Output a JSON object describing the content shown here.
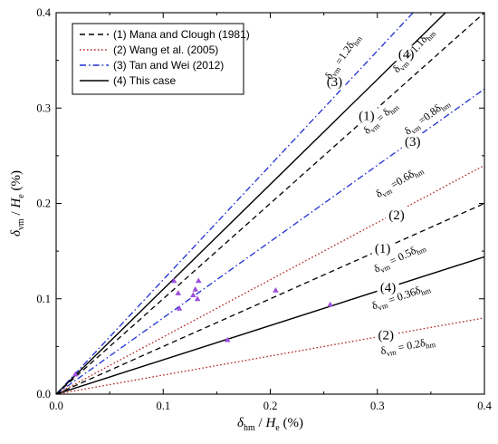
{
  "chart_data": {
    "type": "line",
    "xlim": [
      0,
      0.4
    ],
    "ylim": [
      0,
      0.4
    ],
    "x_ticks": [
      "0.0",
      "0.1",
      "0.2",
      "0.3",
      "0.4"
    ],
    "y_ticks": [
      "0.0",
      "0.1",
      "0.2",
      "0.3",
      "0.4"
    ],
    "xlabel": {
      "main": "δ",
      "sub": "hm",
      "rest": " / H",
      "sub2": "e",
      "unit": " (%)"
    },
    "ylabel": {
      "main": "δ",
      "sub": "vm",
      "rest": " / H",
      "sub2": "e",
      "unit": " (%)"
    },
    "grid": false,
    "legend_position": "top-left",
    "series": [
      {
        "name": "(1) Mana and Clough (1981)",
        "style": "dashed",
        "color": "#000000",
        "slopes": [
          0.5,
          1.0
        ]
      },
      {
        "name": "(2) Wang et al. (2005)",
        "style": "dotted",
        "color": "#b22222",
        "slopes": [
          0.2,
          0.6
        ]
      },
      {
        "name": "(3) Tan and Wei (2012)",
        "style": "dashdot",
        "color": "#1f2fd1",
        "slopes": [
          0.8,
          1.2
        ]
      },
      {
        "name": "(4) This case",
        "style": "solid",
        "color": "#000000",
        "slopes": [
          0.36,
          1.1
        ]
      }
    ],
    "points": {
      "color": "#9d4edd",
      "values": [
        [
          0.11,
          0.119
        ],
        [
          0.114,
          0.106
        ],
        [
          0.115,
          0.09
        ],
        [
          0.128,
          0.104
        ],
        [
          0.13,
          0.11
        ],
        [
          0.132,
          0.1
        ],
        [
          0.133,
          0.119
        ],
        [
          0.16,
          0.057
        ],
        [
          0.205,
          0.109
        ],
        [
          0.256,
          0.094
        ],
        [
          0.018,
          0.021
        ]
      ]
    },
    "line_labels": [
      {
        "text": "(1)",
        "x": 0.29,
        "y": 0.292
      },
      {
        "text": "(4)",
        "x": 0.327,
        "y": 0.357
      },
      {
        "text": "(3)",
        "x": 0.26,
        "y": 0.328
      },
      {
        "text": "(3)",
        "x": 0.333,
        "y": 0.265
      },
      {
        "text": "(2)",
        "x": 0.318,
        "y": 0.188
      },
      {
        "text": "(1)",
        "x": 0.305,
        "y": 0.153
      },
      {
        "text": "(4)",
        "x": 0.31,
        "y": 0.112
      },
      {
        "text": "(2)",
        "x": 0.308,
        "y": 0.062
      }
    ],
    "equations": [
      {
        "pre": "δ",
        "presub": "vm",
        "mid": " =1.2δ",
        "post": "hm",
        "x": 0.27,
        "y": 0.352,
        "rot": -55
      },
      {
        "pre": "δ",
        "presub": "vm",
        "mid": " = 1.1δ",
        "post": "hm",
        "x": 0.336,
        "y": 0.358,
        "rot": -48
      },
      {
        "pre": "δ",
        "presub": "vm",
        "mid": " = δ",
        "post": "hm",
        "x": 0.305,
        "y": 0.287,
        "rot": -43
      },
      {
        "pre": "δ",
        "presub": "vm",
        "mid": " =0.8δ",
        "post": "hm",
        "x": 0.348,
        "y": 0.288,
        "rot": -37
      },
      {
        "pre": "δ",
        "presub": "vm",
        "mid": " =0.6δ",
        "post": "hm",
        "x": 0.322,
        "y": 0.22,
        "rot": -31
      },
      {
        "pre": "δ",
        "presub": "vm",
        "mid": " = 0.5δ",
        "post": "hm",
        "x": 0.322,
        "y": 0.14,
        "rot": -26
      },
      {
        "pre": "δ",
        "presub": "vm",
        "mid": " = 0.36δ",
        "post": "hm",
        "x": 0.323,
        "y": 0.099,
        "rot": -19
      },
      {
        "pre": "δ",
        "presub": "vm",
        "mid": " = 0.2δ",
        "post": "hm",
        "x": 0.329,
        "y": 0.047,
        "rot": -11
      }
    ]
  }
}
